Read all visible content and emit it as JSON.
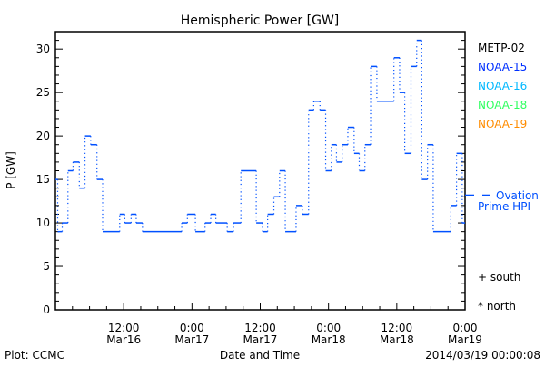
{
  "chart_data": {
    "type": "line",
    "title": "Hemispheric Power [GW]",
    "xlabel": "Date and Time",
    "ylabel": "P [GW]",
    "xlim_hours": [
      0,
      72
    ],
    "x_origin": "2014-03-16 00:00",
    "ylim": [
      0,
      32
    ],
    "yticks": [
      0,
      5,
      10,
      15,
      20,
      25,
      30
    ],
    "xticks": [
      {
        "hour": 12,
        "time": "12:00",
        "date": "Mar16"
      },
      {
        "hour": 24,
        "time": "0:00",
        "date": "Mar17"
      },
      {
        "hour": 36,
        "time": "12:00",
        "date": "Mar17"
      },
      {
        "hour": 48,
        "time": "0:00",
        "date": "Mar18"
      },
      {
        "hour": 60,
        "time": "12:00",
        "date": "Mar18"
      },
      {
        "hour": 72,
        "time": "0:00",
        "date": "Mar19"
      }
    ],
    "series": [
      {
        "name": "NOAA-15",
        "color": "#0050ff",
        "style": "step",
        "steps": [
          [
            0,
            15
          ],
          [
            0.4,
            9
          ],
          [
            1.2,
            10
          ],
          [
            2.2,
            16
          ],
          [
            3.1,
            17
          ],
          [
            4.2,
            14
          ],
          [
            5.2,
            20
          ],
          [
            6.2,
            19
          ],
          [
            7.3,
            15
          ],
          [
            8.3,
            9
          ],
          [
            11.3,
            11
          ],
          [
            12.2,
            10
          ],
          [
            13.3,
            11
          ],
          [
            14.2,
            10
          ],
          [
            15.3,
            9
          ],
          [
            22.2,
            10
          ],
          [
            23.2,
            11
          ],
          [
            24.6,
            9
          ],
          [
            26.3,
            10
          ],
          [
            27.3,
            11
          ],
          [
            28.2,
            10
          ],
          [
            30.2,
            9
          ],
          [
            31.3,
            10
          ],
          [
            32.6,
            16
          ],
          [
            35.3,
            10
          ],
          [
            36.4,
            9
          ],
          [
            37.3,
            11
          ],
          [
            38.4,
            13
          ],
          [
            39.4,
            16
          ],
          [
            40.4,
            9
          ],
          [
            42.3,
            12
          ],
          [
            43.4,
            11
          ],
          [
            44.5,
            23
          ],
          [
            45.4,
            24
          ],
          [
            46.5,
            23
          ],
          [
            47.5,
            16
          ],
          [
            48.5,
            19
          ],
          [
            49.4,
            17
          ],
          [
            50.4,
            19
          ],
          [
            51.4,
            21
          ],
          [
            52.5,
            18
          ],
          [
            53.4,
            16
          ],
          [
            54.4,
            19
          ],
          [
            55.4,
            28
          ],
          [
            56.5,
            24
          ],
          [
            59.5,
            29
          ],
          [
            60.5,
            25
          ],
          [
            61.4,
            18
          ],
          [
            62.5,
            28
          ],
          [
            63.5,
            31
          ],
          [
            64.4,
            15
          ],
          [
            65.4,
            19
          ],
          [
            66.4,
            9
          ],
          [
            69.5,
            12
          ],
          [
            70.5,
            18
          ],
          [
            71.5,
            10
          ]
        ],
        "end_hour": 72
      }
    ],
    "legend": [
      {
        "label": "METP-02",
        "color": "#000000"
      },
      {
        "label": "NOAA-15",
        "color": "#0030ff"
      },
      {
        "label": "NOAA-16",
        "color": "#00b8ff"
      },
      {
        "label": "NOAA-18",
        "color": "#30ff60"
      },
      {
        "label": "NOAA-19",
        "color": "#ff8c00"
      }
    ],
    "ovation": {
      "label_line1": "Ovation",
      "label_line2": "Prime HPI",
      "value": 13.2,
      "color": "#0050ff"
    },
    "markers": {
      "south": "+ south",
      "north": "* north"
    }
  },
  "footer": {
    "left": "Plot: CCMC",
    "right": "2014/03/19 00:00:08"
  }
}
